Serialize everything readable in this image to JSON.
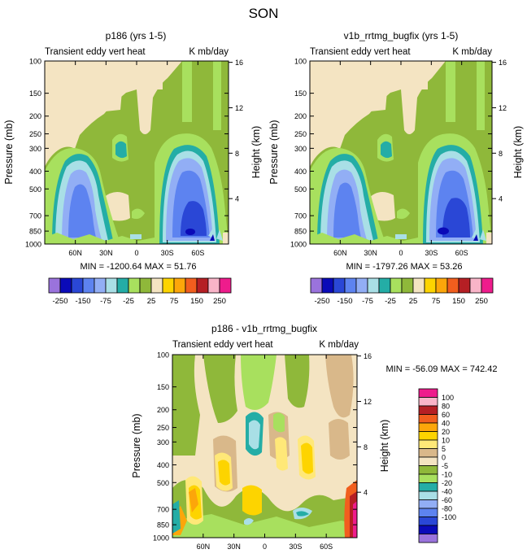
{
  "colors": {
    "main_palette": [
      "#9a73dc",
      "#0a0ab8",
      "#2a47d6",
      "#5d83f0",
      "#92aef5",
      "#a9dfe6",
      "#24ada6",
      "#a8e05e",
      "#8fb83a",
      "#f4e4c2",
      "#fdd400",
      "#fca60a",
      "#f15e1e",
      "#b51f24",
      "#f9b4c8",
      "#ee1c8c"
    ],
    "diff_palette": [
      "#ee1c8c",
      "#f9b4c8",
      "#b51f24",
      "#f15e1e",
      "#fca60a",
      "#fdd400",
      "#ffe878",
      "#d9b88a",
      "#f4e4c2",
      "#8fb83a",
      "#a8e05e",
      "#24ada6",
      "#a9dfe6",
      "#92aef5",
      "#5d83f0",
      "#2a47d6",
      "#0a0ab8",
      "#9a73dc"
    ]
  },
  "chart_data": [
    {
      "type": "heatmap",
      "figure_title": "SON",
      "title": "p186 (yrs 1-5)",
      "left_string": "Transient eddy vert heat",
      "right_string": "K mb/day",
      "ylabel": "Pressure (mb)",
      "ylabel_right": "Height (km)",
      "yticks": [
        100,
        150,
        200,
        250,
        300,
        400,
        500,
        700,
        850,
        1000
      ],
      "yticks_right": [
        16,
        12,
        8,
        4
      ],
      "xticks": [
        "60N",
        "30N",
        "0",
        "30S",
        "60S"
      ],
      "minmax": "MIN = -1200.64  MAX =  51.76",
      "colorbar_labels": [
        "-250",
        "-150",
        "-75",
        "-25",
        "25",
        "75",
        "150",
        "250"
      ]
    },
    {
      "type": "heatmap",
      "title": "v1b_rrtmg_bugfix (yrs 1-5)",
      "left_string": "Transient eddy vert heat",
      "right_string": "K mb/day",
      "ylabel": "Pressure (mb)",
      "ylabel_right": "Height (km)",
      "yticks": [
        100,
        150,
        200,
        250,
        300,
        400,
        500,
        700,
        850,
        1000
      ],
      "yticks_right": [
        16,
        12,
        8,
        4
      ],
      "xticks": [
        "60N",
        "30N",
        "0",
        "30S",
        "60S"
      ],
      "minmax": "MIN = -1797.26  MAX =  53.26",
      "colorbar_labels": [
        "-250",
        "-150",
        "-75",
        "-25",
        "25",
        "75",
        "150",
        "250"
      ]
    },
    {
      "type": "heatmap",
      "title": "p186 - v1b_rrtmg_bugfix",
      "left_string": "Transient eddy vert heat",
      "right_string": "K mb/day",
      "ylabel": "Pressure (mb)",
      "ylabel_right": "Height (km)",
      "yticks": [
        100,
        150,
        200,
        250,
        300,
        400,
        500,
        700,
        850,
        1000
      ],
      "yticks_right": [
        16,
        12,
        8,
        4
      ],
      "xticks": [
        "60N",
        "30N",
        "0",
        "30S",
        "60S"
      ],
      "minmax": "MIN = -56.09  MAX = 742.42",
      "colorbar_labels": [
        "100",
        "80",
        "60",
        "40",
        "20",
        "10",
        "5",
        "0",
        "-5",
        "-10",
        "-20",
        "-40",
        "-60",
        "-80",
        "-100"
      ]
    }
  ]
}
